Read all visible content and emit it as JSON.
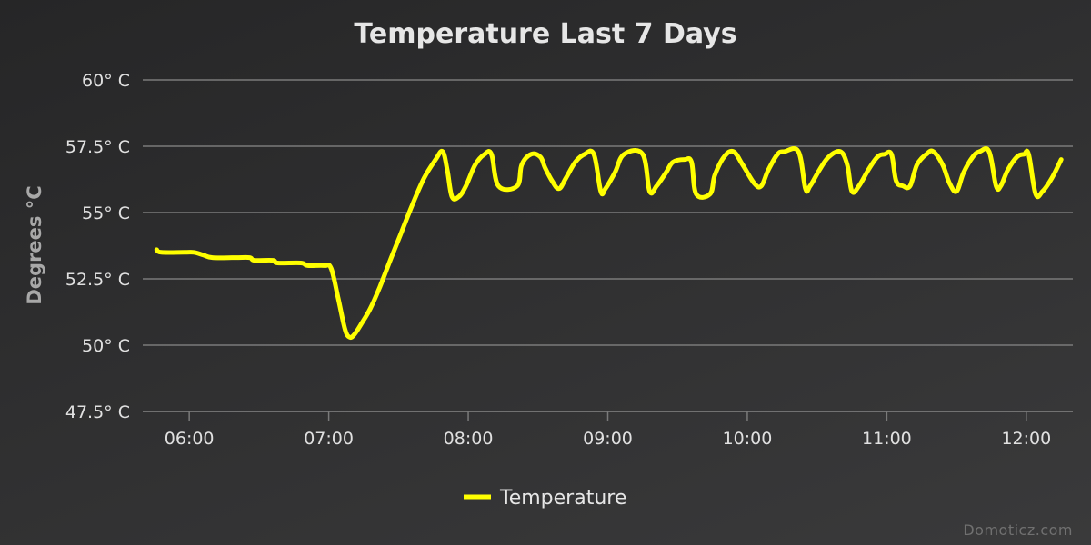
{
  "chart_data": {
    "type": "line",
    "title": "Temperature Last 7 Days",
    "ylabel": "Degrees °C",
    "xlabel": "",
    "ylim": [
      47.5,
      60
    ],
    "xlim": [
      "05:40",
      "12:20"
    ],
    "y_ticks": [
      {
        "value": 60,
        "label": "60° C"
      },
      {
        "value": 57.5,
        "label": "57.5° C"
      },
      {
        "value": 55,
        "label": "55° C"
      },
      {
        "value": 52.5,
        "label": "52.5° C"
      },
      {
        "value": 50,
        "label": "50° C"
      },
      {
        "value": 47.5,
        "label": "47.5° C"
      }
    ],
    "x_ticks": [
      "06:00",
      "07:00",
      "08:00",
      "09:00",
      "10:00",
      "11:00",
      "12:00"
    ],
    "grid": true,
    "legend_position": "bottom-center",
    "series": [
      {
        "name": "Temperature",
        "color": "#ffff00",
        "points": [
          [
            "05:46",
            53.6
          ],
          [
            "05:48",
            53.5
          ],
          [
            "05:58",
            53.5
          ],
          [
            "06:02",
            53.5
          ],
          [
            "06:06",
            53.4
          ],
          [
            "06:10",
            53.3
          ],
          [
            "06:20",
            53.3
          ],
          [
            "06:26",
            53.3
          ],
          [
            "06:28",
            53.2
          ],
          [
            "06:36",
            53.2
          ],
          [
            "06:38",
            53.1
          ],
          [
            "06:48",
            53.1
          ],
          [
            "06:51",
            53.0
          ],
          [
            "06:58",
            53.0
          ],
          [
            "07:01",
            52.9
          ],
          [
            "07:04",
            51.8
          ],
          [
            "07:07",
            50.6
          ],
          [
            "07:09",
            50.3
          ],
          [
            "07:11",
            50.4
          ],
          [
            "07:14",
            50.8
          ],
          [
            "07:18",
            51.4
          ],
          [
            "07:22",
            52.2
          ],
          [
            "07:26",
            53.1
          ],
          [
            "07:31",
            54.2
          ],
          [
            "07:36",
            55.3
          ],
          [
            "07:41",
            56.3
          ],
          [
            "07:46",
            57.0
          ],
          [
            "07:49",
            57.3
          ],
          [
            "07:51",
            56.6
          ],
          [
            "07:53",
            55.6
          ],
          [
            "07:56",
            55.6
          ],
          [
            "07:59",
            56.0
          ],
          [
            "08:03",
            56.8
          ],
          [
            "08:07",
            57.2
          ],
          [
            "08:10",
            57.2
          ],
          [
            "08:13",
            56.0
          ],
          [
            "08:21",
            56.0
          ],
          [
            "08:23",
            56.8
          ],
          [
            "08:27",
            57.2
          ],
          [
            "08:31",
            57.1
          ],
          [
            "08:33",
            56.7
          ],
          [
            "08:36",
            56.2
          ],
          [
            "08:39",
            55.9
          ],
          [
            "08:42",
            56.3
          ],
          [
            "08:46",
            56.9
          ],
          [
            "08:50",
            57.2
          ],
          [
            "08:54",
            57.2
          ],
          [
            "08:57",
            55.8
          ],
          [
            "08:59",
            55.9
          ],
          [
            "09:03",
            56.5
          ],
          [
            "09:07",
            57.2
          ],
          [
            "09:15",
            57.2
          ],
          [
            "09:18",
            55.8
          ],
          [
            "09:21",
            56.0
          ],
          [
            "09:25",
            56.5
          ],
          [
            "09:28",
            56.9
          ],
          [
            "09:33",
            57.0
          ],
          [
            "09:36",
            56.9
          ],
          [
            "09:38",
            55.7
          ],
          [
            "09:44",
            55.7
          ],
          [
            "09:46",
            56.4
          ],
          [
            "09:50",
            57.1
          ],
          [
            "09:54",
            57.3
          ],
          [
            "09:58",
            56.8
          ],
          [
            "10:03",
            56.1
          ],
          [
            "10:06",
            56.0
          ],
          [
            "10:09",
            56.6
          ],
          [
            "10:13",
            57.2
          ],
          [
            "10:16",
            57.3
          ],
          [
            "10:22",
            57.3
          ],
          [
            "10:25",
            55.9
          ],
          [
            "10:27",
            56.0
          ],
          [
            "10:31",
            56.6
          ],
          [
            "10:35",
            57.1
          ],
          [
            "10:40",
            57.3
          ],
          [
            "10:43",
            56.8
          ],
          [
            "10:45",
            55.8
          ],
          [
            "10:48",
            56.0
          ],
          [
            "10:52",
            56.6
          ],
          [
            "10:56",
            57.1
          ],
          [
            "10:59",
            57.2
          ],
          [
            "11:02",
            57.2
          ],
          [
            "11:04",
            56.2
          ],
          [
            "11:07",
            56.0
          ],
          [
            "11:10",
            56.0
          ],
          [
            "11:13",
            56.8
          ],
          [
            "11:17",
            57.2
          ],
          [
            "11:20",
            57.3
          ],
          [
            "11:24",
            56.8
          ],
          [
            "11:27",
            56.1
          ],
          [
            "11:30",
            55.8
          ],
          [
            "11:33",
            56.5
          ],
          [
            "11:37",
            57.1
          ],
          [
            "11:40",
            57.3
          ],
          [
            "11:44",
            57.3
          ],
          [
            "11:47",
            56.0
          ],
          [
            "11:49",
            56.0
          ],
          [
            "11:52",
            56.6
          ],
          [
            "11:56",
            57.1
          ],
          [
            "11:59",
            57.2
          ],
          [
            "12:01",
            57.2
          ],
          [
            "12:04",
            55.7
          ],
          [
            "12:07",
            55.8
          ],
          [
            "12:11",
            56.3
          ],
          [
            "12:15",
            57.0
          ]
        ]
      }
    ]
  },
  "credit": "Domoticz.com"
}
